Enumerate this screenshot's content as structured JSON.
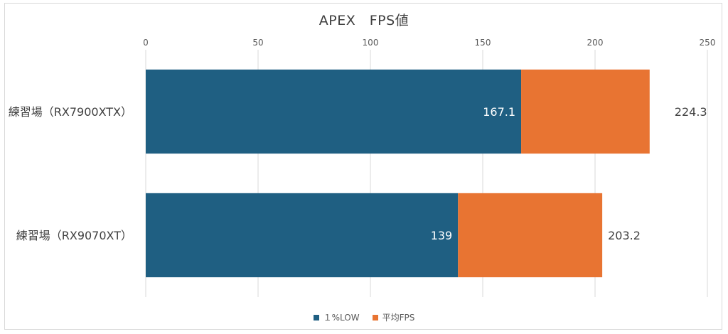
{
  "chart_data": {
    "type": "bar",
    "orientation": "horizontal",
    "stacked": true,
    "title": "APEX　FPS値",
    "categories": [
      "練習場（RX7900XTX）",
      "練習場（RX9070XT）"
    ],
    "series": [
      {
        "name": "１%LOW",
        "color": "#1f5f82",
        "values": [
          167.1,
          139
        ]
      },
      {
        "name": "平均FPS",
        "color": "#e87432",
        "totals": [
          224.3,
          203.2
        ]
      }
    ],
    "data_labels": {
      "low": [
        "167.1",
        "139"
      ],
      "avg": [
        "224.3",
        "203.2"
      ]
    },
    "xlim": [
      0,
      250
    ],
    "xticks": [
      "0",
      "50",
      "100",
      "150",
      "200",
      "250"
    ],
    "grid": true,
    "legend_position": "bottom"
  }
}
